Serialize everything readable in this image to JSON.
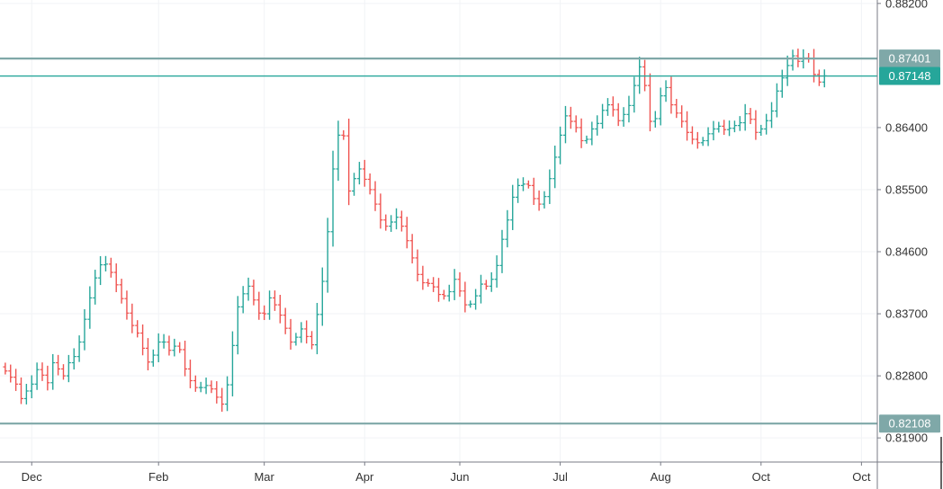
{
  "chart_data": {
    "type": "bar",
    "ohlc_style": "bars",
    "grid": true,
    "x_ticks": [
      {
        "label": "Dec",
        "i": 5
      },
      {
        "label": "Feb",
        "i": 29
      },
      {
        "label": "Mar",
        "i": 49
      },
      {
        "label": "Apr",
        "i": 68
      },
      {
        "label": "Jun",
        "i": 86
      },
      {
        "label": "Jul",
        "i": 105
      },
      {
        "label": "Aug",
        "i": 124
      },
      {
        "label": "Oct",
        "i": 143
      },
      {
        "label": "Oct",
        "i": 162
      }
    ],
    "y_ticks": [
      {
        "label": "0.88200",
        "value": 0.882
      },
      {
        "label": "0.86400",
        "value": 0.864
      },
      {
        "label": "0.85500",
        "value": 0.855
      },
      {
        "label": "0.84600",
        "value": 0.846
      },
      {
        "label": "0.83700",
        "value": 0.837
      },
      {
        "label": "0.82800",
        "value": 0.828
      },
      {
        "label": "0.81900",
        "value": 0.819
      }
    ],
    "ylim": [
      0.8155,
      0.8825
    ],
    "xlim": [
      -1,
      165
    ],
    "horizontal_levels": [
      {
        "label": "0.87401",
        "value": 0.87401,
        "style": "gray"
      },
      {
        "label": "0.87148",
        "value": 0.87148,
        "style": "teal"
      },
      {
        "label": "0.82108",
        "value": 0.82108,
        "style": "gray"
      }
    ],
    "colors": {
      "up": "#26a69a",
      "down": "#ef5350",
      "level_gray": "#7fa8a8",
      "level_teal": "#26a69a",
      "grid": "#f1f3f6",
      "axis": "#787b86",
      "text": "#333333"
    },
    "close": [
      0.8287,
      0.8278,
      0.8268,
      0.8247,
      0.8258,
      0.8268,
      0.8289,
      0.8281,
      0.827,
      0.8299,
      0.829,
      0.828,
      0.8299,
      0.8308,
      0.8329,
      0.8362,
      0.8393,
      0.8422,
      0.8441,
      0.8442,
      0.843,
      0.8412,
      0.8392,
      0.8371,
      0.8353,
      0.8342,
      0.832,
      0.83,
      0.831,
      0.8329,
      0.8329,
      0.8317,
      0.8323,
      0.8318,
      0.829,
      0.8273,
      0.8263,
      0.8263,
      0.8266,
      0.8261,
      0.8249,
      0.8239,
      0.8267,
      0.8324,
      0.838,
      0.8399,
      0.841,
      0.839,
      0.8371,
      0.837,
      0.8393,
      0.8383,
      0.8368,
      0.8349,
      0.8329,
      0.8336,
      0.8348,
      0.8337,
      0.8325,
      0.8369,
      0.8417,
      0.8489,
      0.858,
      0.8629,
      0.8628,
      0.8548,
      0.8566,
      0.858,
      0.8565,
      0.855,
      0.8529,
      0.8506,
      0.8497,
      0.8503,
      0.851,
      0.8497,
      0.8476,
      0.8451,
      0.8427,
      0.8415,
      0.8414,
      0.8409,
      0.8398,
      0.8396,
      0.8402,
      0.842,
      0.8403,
      0.8383,
      0.8384,
      0.8396,
      0.8413,
      0.841,
      0.842,
      0.844,
      0.8478,
      0.8506,
      0.8539,
      0.8556,
      0.8558,
      0.8556,
      0.8537,
      0.8529,
      0.854,
      0.8566,
      0.8597,
      0.8629,
      0.8657,
      0.8649,
      0.864,
      0.8621,
      0.8623,
      0.8638,
      0.8646,
      0.8665,
      0.8673,
      0.8666,
      0.865,
      0.8659,
      0.8672,
      0.8701,
      0.8728,
      0.8701,
      0.8649,
      0.8653,
      0.8686,
      0.8698,
      0.8673,
      0.8661,
      0.8649,
      0.8633,
      0.8623,
      0.8618,
      0.8621,
      0.8631,
      0.8638,
      0.8642,
      0.8637,
      0.8639,
      0.8643,
      0.8647,
      0.866,
      0.8652,
      0.8633,
      0.8638,
      0.865,
      0.8664,
      0.8693,
      0.8712,
      0.873,
      0.8744,
      0.8736,
      0.8741,
      0.874,
      0.8717,
      0.8706,
      0.8715
    ]
  }
}
